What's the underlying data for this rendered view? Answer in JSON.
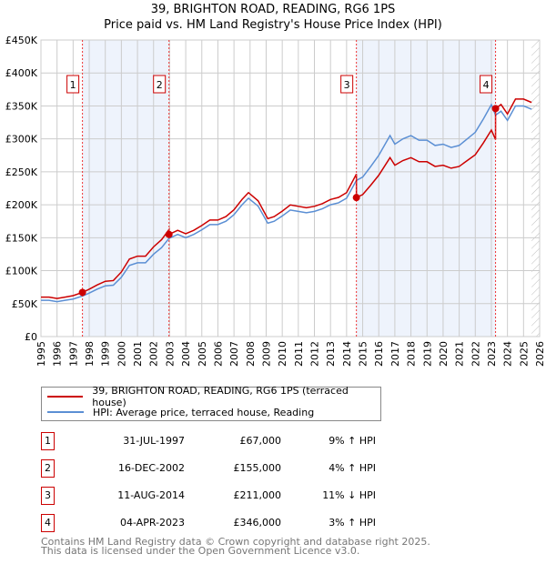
{
  "title": "39, BRIGHTON ROAD, READING, RG6 1PS",
  "subtitle": "Price paid vs. HM Land Registry's House Price Index (HPI)",
  "chart_data": {
    "type": "line",
    "xlim": [
      1995,
      2026
    ],
    "ylim": [
      0,
      450000
    ],
    "y_ticks": [
      {
        "v": 0,
        "l": "£0"
      },
      {
        "v": 50000,
        "l": "£50K"
      },
      {
        "v": 100000,
        "l": "£100K"
      },
      {
        "v": 150000,
        "l": "£150K"
      },
      {
        "v": 200000,
        "l": "£200K"
      },
      {
        "v": 250000,
        "l": "£250K"
      },
      {
        "v": 300000,
        "l": "£300K"
      },
      {
        "v": 350000,
        "l": "£350K"
      },
      {
        "v": 400000,
        "l": "£400K"
      },
      {
        "v": 450000,
        "l": "£450K"
      }
    ],
    "x_ticks": [
      "1995",
      "1996",
      "1997",
      "1998",
      "1999",
      "2000",
      "2001",
      "2002",
      "2003",
      "2004",
      "2005",
      "2006",
      "2007",
      "2008",
      "2009",
      "2010",
      "2011",
      "2012",
      "2013",
      "2014",
      "2015",
      "2016",
      "2017",
      "2018",
      "2019",
      "2020",
      "2021",
      "2022",
      "2023",
      "2024",
      "2025",
      "2026"
    ],
    "grid": true,
    "colors": {
      "property": "#cc0000",
      "hpi": "#5b8fd4",
      "shade": "#eef3fc"
    },
    "forecast_from": 2025.5,
    "hpi": [
      [
        1995,
        55000
      ],
      [
        1995.5,
        55000
      ],
      [
        1996,
        53000
      ],
      [
        1996.5,
        55000
      ],
      [
        1997,
        57000
      ],
      [
        1997.58,
        61500
      ],
      [
        1998,
        66000
      ],
      [
        1998.5,
        72000
      ],
      [
        1999,
        77000
      ],
      [
        1999.5,
        78000
      ],
      [
        2000,
        90000
      ],
      [
        2000.5,
        108000
      ],
      [
        2001,
        112000
      ],
      [
        2001.5,
        112000
      ],
      [
        2002,
        125000
      ],
      [
        2002.5,
        135000
      ],
      [
        2002.96,
        149000
      ],
      [
        2003.5,
        155000
      ],
      [
        2004,
        150000
      ],
      [
        2004.5,
        155000
      ],
      [
        2005,
        162000
      ],
      [
        2005.5,
        170000
      ],
      [
        2006,
        170000
      ],
      [
        2006.5,
        175000
      ],
      [
        2007,
        185000
      ],
      [
        2007.5,
        200000
      ],
      [
        2007.9,
        210000
      ],
      [
        2008.5,
        198000
      ],
      [
        2009.1,
        172000
      ],
      [
        2009.5,
        175000
      ],
      [
        2010,
        183000
      ],
      [
        2010.5,
        192000
      ],
      [
        2011,
        190000
      ],
      [
        2011.5,
        188000
      ],
      [
        2012,
        190000
      ],
      [
        2012.5,
        194000
      ],
      [
        2013,
        200000
      ],
      [
        2013.5,
        203000
      ],
      [
        2014,
        210000
      ],
      [
        2014.61,
        237000
      ],
      [
        2015,
        242000
      ],
      [
        2015.5,
        258000
      ],
      [
        2016,
        275000
      ],
      [
        2016.7,
        305000
      ],
      [
        2017,
        292000
      ],
      [
        2017.5,
        300000
      ],
      [
        2018,
        305000
      ],
      [
        2018.5,
        298000
      ],
      [
        2019,
        298000
      ],
      [
        2019.5,
        290000
      ],
      [
        2020,
        292000
      ],
      [
        2020.5,
        287000
      ],
      [
        2021,
        290000
      ],
      [
        2021.5,
        300000
      ],
      [
        2022,
        310000
      ],
      [
        2022.5,
        330000
      ],
      [
        2023,
        352000
      ],
      [
        2023.26,
        336000
      ],
      [
        2023.6,
        342000
      ],
      [
        2024,
        328000
      ],
      [
        2024.5,
        350000
      ],
      [
        2025,
        350000
      ],
      [
        2025.5,
        345000
      ]
    ],
    "sales": [
      {
        "n": "1",
        "year": 1997.58,
        "date": "31-JUL-1997",
        "price": 67000,
        "price_label": "£67,000",
        "hpi_label": "9% ↑ HPI"
      },
      {
        "n": "2",
        "year": 2002.96,
        "date": "16-DEC-2002",
        "price": 155000,
        "price_label": "£155,000",
        "hpi_label": "4% ↑ HPI"
      },
      {
        "n": "3",
        "year": 2014.61,
        "date": "11-AUG-2014",
        "price": 211000,
        "price_label": "£211,000",
        "hpi_label": "11% ↓ HPI"
      },
      {
        "n": "4",
        "year": 2023.26,
        "date": "04-APR-2023",
        "price": 346000,
        "price_label": "£346,000",
        "hpi_label": "3% ↑ HPI"
      }
    ],
    "legend": [
      "39, BRIGHTON ROAD, READING, RG6 1PS (terraced house)",
      "HPI: Average price, terraced house, Reading"
    ]
  },
  "footer": [
    "Contains HM Land Registry data © Crown copyright and database right 2025.",
    "This data is licensed under the Open Government Licence v3.0."
  ]
}
